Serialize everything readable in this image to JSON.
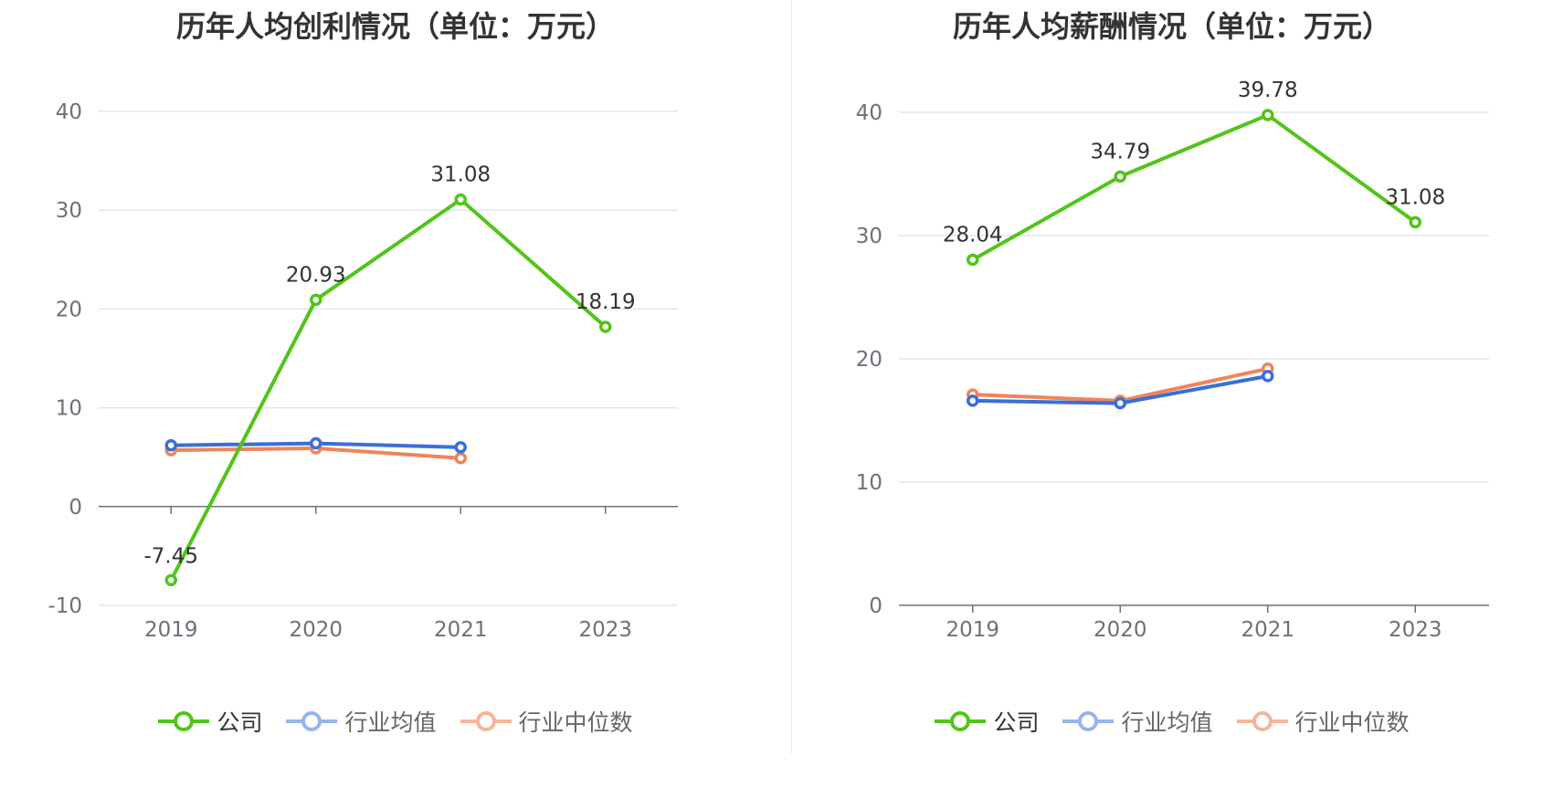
{
  "chart_data": [
    {
      "type": "line",
      "title": "历年人均创利情况（单位：万元）",
      "categories": [
        "2019",
        "2020",
        "2021",
        "2023"
      ],
      "ylim": [
        -10,
        40
      ],
      "yticks": [
        "-10",
        "0",
        "10",
        "20",
        "30",
        "40"
      ],
      "grid": true,
      "legend_position": "bottom",
      "series": [
        {
          "name": "公司",
          "color": "#52c41a",
          "values": [
            -7.45,
            20.93,
            31.08,
            18.19
          ],
          "labels": [
            "-7.45",
            "20.93",
            "31.08",
            "18.19"
          ]
        },
        {
          "name": "行业均值",
          "color": "#3a6fd8",
          "values": [
            6.2,
            6.4,
            6.0,
            null
          ]
        },
        {
          "name": "行业中位数",
          "color": "#f0845a",
          "values": [
            5.7,
            5.9,
            4.9,
            null
          ]
        }
      ]
    },
    {
      "type": "line",
      "title": "历年人均薪酬情况（单位：万元）",
      "categories": [
        "2019",
        "2020",
        "2021",
        "2023"
      ],
      "ylim": [
        0,
        40
      ],
      "yticks": [
        "0",
        "10",
        "20",
        "30",
        "40"
      ],
      "grid": true,
      "legend_position": "bottom",
      "series": [
        {
          "name": "公司",
          "color": "#52c41a",
          "values": [
            28.04,
            34.79,
            39.78,
            31.08
          ],
          "labels": [
            "28.04",
            "34.79",
            "39.78",
            "31.08"
          ]
        },
        {
          "name": "行业均值",
          "color": "#3a6fd8",
          "values": [
            16.6,
            16.4,
            18.6,
            null
          ]
        },
        {
          "name": "行业中位数",
          "color": "#f0845a",
          "values": [
            17.1,
            16.6,
            19.2,
            null
          ]
        }
      ]
    }
  ]
}
